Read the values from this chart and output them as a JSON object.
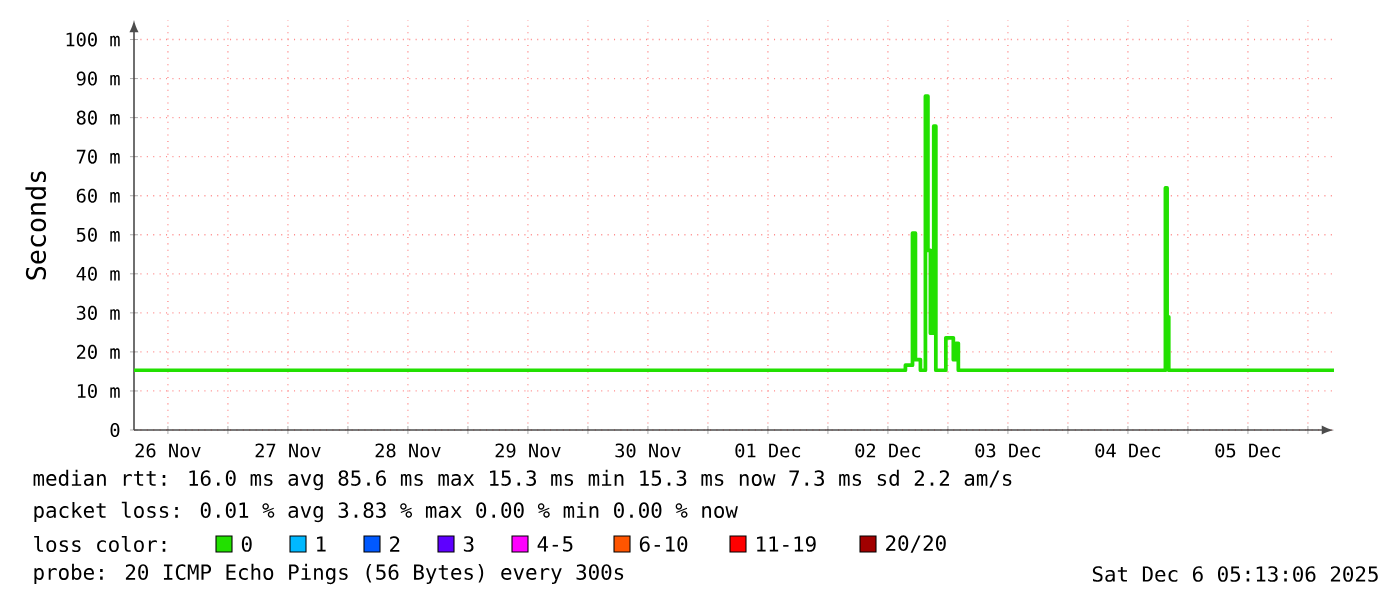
{
  "chart_data": {
    "type": "step",
    "ylabel": "Seconds",
    "x": [
      "2025-11-26T05:13",
      "2025-12-02T15:00",
      "2025-12-02T15:30",
      "2025-12-02T16:55",
      "2025-12-02T17:30",
      "2025-12-02T18:30",
      "2025-12-02T19:30",
      "2025-12-02T20:00",
      "2025-12-02T20:30",
      "2025-12-02T21:10",
      "2025-12-02T21:35",
      "2025-12-02T23:10",
      "2025-12-02T23:35",
      "2025-12-03T00:15",
      "2025-12-03T01:05",
      "2025-12-03T01:35",
      "2025-12-03T02:05",
      "2025-12-04T19:00",
      "2025-12-04T19:30",
      "2025-12-04T19:50",
      "2025-12-04T20:10",
      "2025-12-06T05:13"
    ],
    "series": [
      {
        "name": "0",
        "color": "#22e000",
        "values": [
          15.3,
          15.3,
          16.6,
          50.4,
          18,
          15.3,
          85.5,
          46,
          24.8,
          77.8,
          15.3,
          15.3,
          23.6,
          23.6,
          18,
          22.2,
          15.3,
          15.3,
          62,
          29,
          15.3,
          15.3
        ]
      },
      {
        "name": "1",
        "color": "#00b8ff",
        "values": [
          null,
          null,
          null,
          null,
          null,
          null,
          null,
          null,
          null,
          null,
          null,
          null,
          null,
          null,
          null,
          null,
          null,
          null,
          null,
          null,
          null,
          null
        ]
      },
      {
        "name": "2",
        "color": "#0059ff",
        "values": [
          null,
          null,
          null,
          null,
          null,
          null,
          null,
          null,
          null,
          null,
          null,
          null,
          null,
          null,
          null,
          null,
          null,
          null,
          null,
          null,
          null,
          null
        ]
      },
      {
        "name": "3",
        "color": "#5e00ff",
        "values": [
          null,
          null,
          null,
          null,
          null,
          null,
          null,
          null,
          null,
          null,
          null,
          null,
          null,
          null,
          null,
          null,
          null,
          null,
          null,
          null,
          null,
          null
        ]
      },
      {
        "name": "4-5",
        "color": "#ff00ff",
        "values": [
          null,
          null,
          null,
          null,
          null,
          null,
          null,
          null,
          null,
          null,
          null,
          null,
          null,
          null,
          null,
          null,
          null,
          null,
          null,
          null,
          null,
          null
        ]
      },
      {
        "name": "6-10",
        "color": "#ff5500",
        "values": [
          null,
          null,
          null,
          null,
          null,
          null,
          null,
          null,
          null,
          null,
          null,
          null,
          null,
          null,
          null,
          null,
          null,
          null,
          null,
          null,
          null,
          null
        ]
      },
      {
        "name": "11-19",
        "color": "#ff0000",
        "values": [
          null,
          null,
          null,
          null,
          null,
          null,
          null,
          null,
          null,
          null,
          null,
          null,
          null,
          null,
          null,
          null,
          null,
          null,
          null,
          null,
          null,
          null
        ]
      },
      {
        "name": "20/20",
        "color": "#a10000",
        "values": [
          null,
          null,
          null,
          null,
          null,
          null,
          null,
          null,
          null,
          null,
          null,
          null,
          null,
          null,
          null,
          null,
          null,
          null,
          null,
          null,
          null,
          null
        ]
      }
    ],
    "xlim": [
      "2025-11-26T05:13",
      "2025-12-06T05:13"
    ],
    "xticks": [
      {
        "value": "2025-11-26T12:00",
        "label": "26 Nov"
      },
      {
        "value": "2025-11-27T00:00",
        "label": null
      },
      {
        "value": "2025-11-27T12:00",
        "label": "27 Nov"
      },
      {
        "value": "2025-11-28T00:00",
        "label": null
      },
      {
        "value": "2025-11-28T12:00",
        "label": "28 Nov"
      },
      {
        "value": "2025-11-29T00:00",
        "label": null
      },
      {
        "value": "2025-11-29T12:00",
        "label": "29 Nov"
      },
      {
        "value": "2025-11-30T00:00",
        "label": null
      },
      {
        "value": "2025-11-30T12:00",
        "label": "30 Nov"
      },
      {
        "value": "2025-12-01T00:00",
        "label": null
      },
      {
        "value": "2025-12-01T12:00",
        "label": "01 Dec"
      },
      {
        "value": "2025-12-02T00:00",
        "label": null
      },
      {
        "value": "2025-12-02T12:00",
        "label": "02 Dec"
      },
      {
        "value": "2025-12-03T00:00",
        "label": null
      },
      {
        "value": "2025-12-03T12:00",
        "label": "03 Dec"
      },
      {
        "value": "2025-12-04T00:00",
        "label": null
      },
      {
        "value": "2025-12-04T12:00",
        "label": "04 Dec"
      },
      {
        "value": "2025-12-05T00:00",
        "label": null
      },
      {
        "value": "2025-12-05T12:00",
        "label": "05 Dec"
      },
      {
        "value": "2025-12-06T00:00",
        "label": null
      }
    ],
    "ylim": [
      0,
      105
    ],
    "yticks": [
      0,
      {
        "value": 10,
        "label": "10 m"
      },
      {
        "value": 20,
        "label": "20 m"
      },
      {
        "value": 30,
        "label": "30 m"
      },
      {
        "value": 40,
        "label": "40 m"
      },
      {
        "value": 50,
        "label": "50 m"
      },
      {
        "value": 60,
        "label": "60 m"
      },
      {
        "value": 70,
        "label": "70 m"
      },
      {
        "value": 80,
        "label": "80 m"
      },
      {
        "value": 90,
        "label": "90 m"
      },
      {
        "value": 100,
        "label": "100 m"
      }
    ],
    "grid": true,
    "legend": "bottom",
    "legend_title": "loss color:",
    "annotations": [
      "median rtt:  16.0 ms avg  85.6 ms max  15.3 ms min  15.3 ms now  7.3 ms sd  2.2  am/s",
      "packet loss: 0.01 % avg  3.83 % max  0.00 % min  0.00 % now",
      "probe:       20 ICMP Echo Pings (56 Bytes) every 300s",
      "Sat Dec  6 05:13:06 2025"
    ]
  }
}
